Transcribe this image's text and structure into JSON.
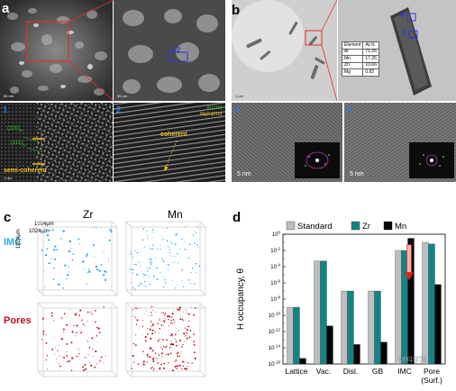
{
  "panel_a": {
    "label": "a",
    "sub1": "1",
    "sub2": "2",
    "scale_top_left": "50 nm",
    "scale_top_right": "50 nm",
    "scale_bottom_left": "1 nm",
    "marker": "1 2",
    "tem1_labels": [
      "(220)",
      "(111)",
      "semi-coherent"
    ],
    "tem1_subscripts": [
      "Al",
      "Al"
    ],
    "tem2_labels": [
      "Al [1",
      "Mg",
      "coherent"
    ],
    "tem2_label_rest": [
      "10]",
      "Zn",
      "[2",
      "10]"
    ]
  },
  "panel_b": {
    "label": "b",
    "sub3": "3",
    "sub4": "4",
    "marker3": "3",
    "marker4": "4",
    "scale_top_left": "1 μm",
    "scale_bottom": "5 nm",
    "scale_bottom2": "5 nm",
    "table_header": [
      "Element",
      "At.%"
    ],
    "table_rows": [
      [
        "Al",
        "71.26"
      ],
      [
        "Mn",
        "17.26"
      ],
      [
        "Zn",
        "10.66"
      ],
      [
        "Mg",
        "0.82"
      ]
    ]
  },
  "panel_c": {
    "label": "c",
    "col_labels": [
      "Zr",
      "Mn"
    ],
    "row_labels": [
      "IMC",
      "Pores"
    ],
    "dims": [
      "1024μm",
      "1024μm",
      "1024μm"
    ],
    "row_colors": {
      "IMC": "#29abe2",
      "Pores": "#b5121b"
    }
  },
  "panel_d": {
    "label": "d",
    "ylabel": "H occupancy, θ",
    "watermark": "材料学网",
    "chart_data": {
      "type": "bar",
      "categories": [
        "Lattice",
        "Vac.",
        "Disl.",
        "GB",
        "IMC",
        "Pore (Surf.)"
      ],
      "category_lines": [
        [
          "Lattice"
        ],
        [
          "Vac."
        ],
        [
          "Disl."
        ],
        [
          "GB"
        ],
        [
          "IMC"
        ],
        [
          "Pore",
          "(Surf.)"
        ]
      ],
      "yscale": "log",
      "ylim_exp": [
        -16,
        0
      ],
      "ytick_labels": [
        "10^0",
        "10^-2",
        "10^-4",
        "10^-6",
        "10^-8",
        "10^-10",
        "10^-12",
        "10^-14",
        "10^-16"
      ],
      "series": [
        {
          "name": "Standard",
          "color": "#bebebe",
          "values_exp": [
            -9,
            -3.3,
            -7,
            -7,
            -2,
            -1
          ]
        },
        {
          "name": "Zr",
          "color": "#138484",
          "values_exp": [
            -9,
            -3.3,
            -7,
            -7,
            -2,
            -1.2
          ]
        },
        {
          "name": "Mn",
          "color": "#050505",
          "values_exp": [
            -15.3,
            -11.3,
            -13.6,
            -13.3,
            -0.5,
            -6.2
          ]
        }
      ],
      "legend": "top",
      "grid": false
    }
  }
}
